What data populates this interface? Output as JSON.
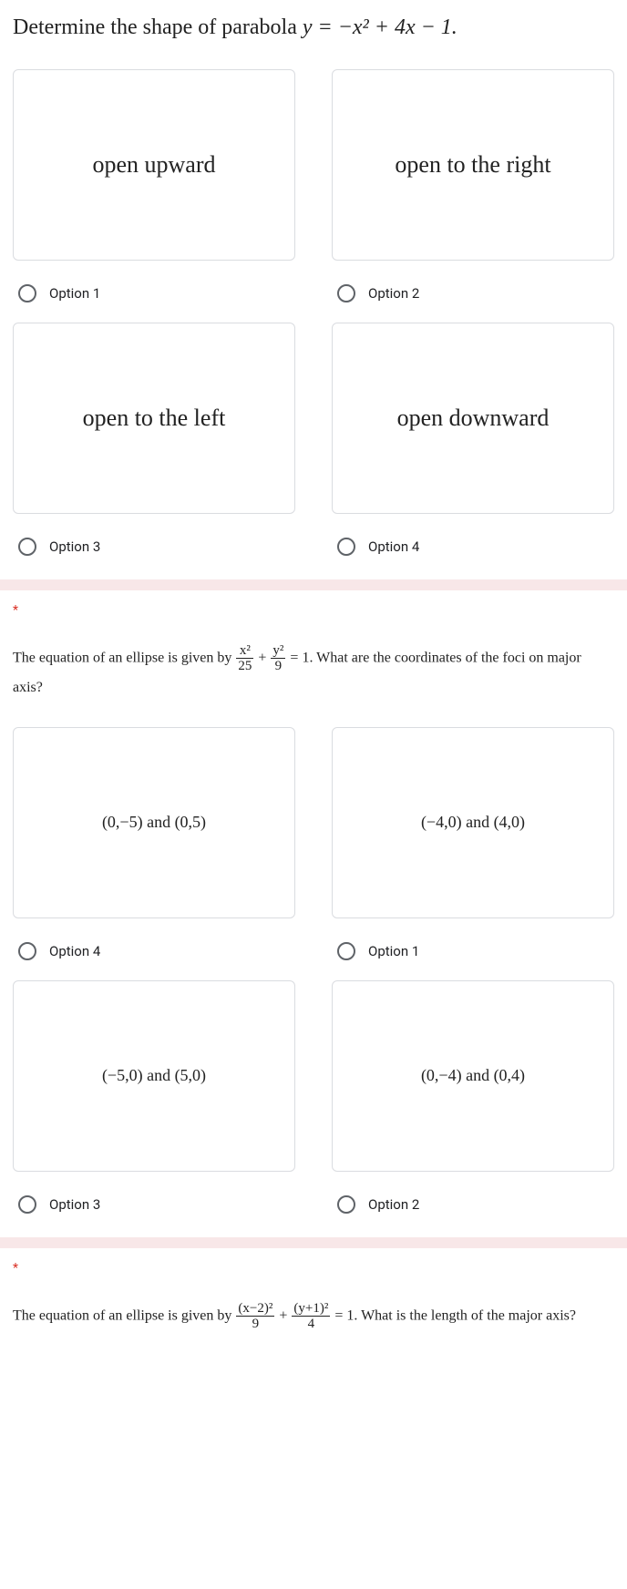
{
  "q1": {
    "prompt_pre": "Determine the shape of parabola ",
    "prompt_eq": "y = −x² + 4x − 1.",
    "options": [
      {
        "card": "open upward",
        "label": "Option 1"
      },
      {
        "card": "open to the right",
        "label": "Option 2"
      },
      {
        "card": "open to the left",
        "label": "Option 3"
      },
      {
        "card": "open downward",
        "label": "Option 4"
      }
    ]
  },
  "q2": {
    "asterisk": "*",
    "prompt_pre": "The equation of an ellipse is given by ",
    "frac1_num": "x²",
    "frac1_den": "25",
    "plus": " + ",
    "frac2_num": "y²",
    "frac2_den": "9",
    "prompt_post": " = 1. What are the coordinates of the foci on major axis?",
    "options": [
      {
        "card": "(0,−5) and (0,5)",
        "label": "Option 4"
      },
      {
        "card": "(−4,0) and (4,0)",
        "label": "Option 1"
      },
      {
        "card": "(−5,0) and (5,0)",
        "label": "Option 3"
      },
      {
        "card": "(0,−4) and (0,4)",
        "label": "Option 2"
      }
    ]
  },
  "q3": {
    "asterisk": "*",
    "prompt_pre": "The equation of an ellipse is given by ",
    "frac1_num": "(x−2)²",
    "frac1_den": "9",
    "plus": " + ",
    "frac2_num": "(y+1)²",
    "frac2_den": "4",
    "prompt_post": " = 1. What is the length of the major axis?"
  },
  "colors": {
    "border": "#dadce0",
    "divider": "#f8e7e8",
    "text": "#202124",
    "radio": "#5f6368",
    "required": "#d93025"
  }
}
